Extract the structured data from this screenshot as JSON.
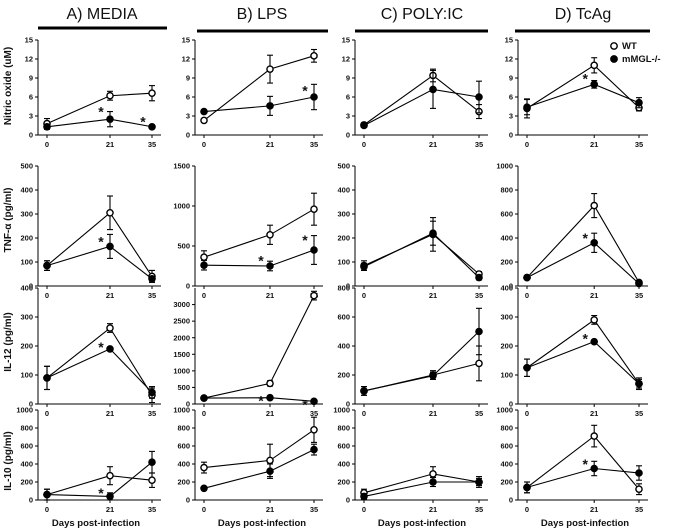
{
  "chart_data": {
    "type": "line",
    "columns": [
      "A) MEDIA",
      "B) LPS",
      "C) POLY:IC",
      "D) TcAg"
    ],
    "row_ylabels": [
      "Nitric oxide (uM)",
      "TNF-α (pg/ml)",
      "IL-12 (pg/ml)",
      "IL-10 (pg/ml)"
    ],
    "xlabel": "Days post-infection",
    "x": [
      0,
      21,
      35
    ],
    "legend": [
      {
        "name": "WT",
        "marker": "open circle"
      },
      {
        "name": "mMGL-/-",
        "marker": "filled circle"
      }
    ],
    "panels": [
      {
        "row": 0,
        "col": 0,
        "ylim": [
          0,
          15
        ],
        "yticks": [
          "0",
          "3",
          "6",
          "9",
          "12",
          "15"
        ],
        "series": [
          {
            "name": "WT",
            "values": [
              1.8,
              6.2,
              6.6
            ],
            "errors": [
              0.8,
              0.7,
              1.2
            ]
          },
          {
            "name": "mMGL-/-",
            "values": [
              1.3,
              2.5,
              1.3
            ],
            "errors": [
              0.4,
              1.2,
              0.3
            ]
          }
        ],
        "stars": [
          {
            "x": 21,
            "y": 3.9
          },
          {
            "x": 35,
            "y": 2.3
          }
        ]
      },
      {
        "row": 0,
        "col": 1,
        "ylim": [
          0,
          15
        ],
        "yticks": [
          "0",
          "3",
          "6",
          "9",
          "12",
          "15"
        ],
        "series": [
          {
            "name": "WT",
            "values": [
              2.3,
              10.4,
              12.5
            ],
            "errors": [
              0.3,
              2.2,
              1.0
            ]
          },
          {
            "name": "mMGL-/-",
            "values": [
              3.7,
              4.6,
              6.0
            ],
            "errors": [
              0.2,
              1.5,
              2.0
            ]
          }
        ],
        "stars": [
          {
            "x": 35,
            "y": 7.2
          }
        ]
      },
      {
        "row": 0,
        "col": 2,
        "ylim": [
          0,
          15
        ],
        "yticks": [
          "0",
          "3",
          "6",
          "9",
          "12",
          "15"
        ],
        "series": [
          {
            "name": "WT",
            "values": [
              1.6,
              9.4,
              3.7
            ],
            "errors": [
              0.3,
              1.0,
              1.1
            ]
          },
          {
            "name": "mMGL-/-",
            "values": [
              1.5,
              7.2,
              6.0
            ],
            "errors": [
              0.3,
              3.0,
              2.5
            ]
          }
        ],
        "stars": []
      },
      {
        "row": 0,
        "col": 3,
        "ylim": [
          0,
          15
        ],
        "yticks": [
          "0",
          "3",
          "6",
          "9",
          "12",
          "15"
        ],
        "series": [
          {
            "name": "WT",
            "values": [
              4.2,
              11.0,
              4.3
            ],
            "errors": [
              1.5,
              1.2,
              0.5
            ]
          },
          {
            "name": "mMGL-/-",
            "values": [
              4.4,
              8.0,
              5.1
            ],
            "errors": [
              1.2,
              0.6,
              0.8
            ]
          }
        ],
        "stars": [
          {
            "x": 21,
            "y": 9.1
          }
        ]
      },
      {
        "row": 1,
        "col": 0,
        "ylim": [
          0,
          500
        ],
        "yticks": [
          "0",
          "100",
          "200",
          "300",
          "400",
          "500"
        ],
        "series": [
          {
            "name": "WT",
            "values": [
              85,
              305,
              40
            ],
            "errors": [
              20,
              70,
              25
            ]
          },
          {
            "name": "mMGL-/-",
            "values": [
              85,
              165,
              30
            ],
            "errors": [
              20,
              50,
              10
            ]
          }
        ],
        "stars": [
          {
            "x": 21,
            "y": 190
          }
        ]
      },
      {
        "row": 1,
        "col": 1,
        "ylim": [
          0,
          1500
        ],
        "yticks": [
          "0",
          "500",
          "1000",
          "1500"
        ],
        "series": [
          {
            "name": "WT",
            "values": [
              360,
              640,
              960
            ],
            "errors": [
              80,
              120,
              200
            ]
          },
          {
            "name": "mMGL-/-",
            "values": [
              260,
              250,
              450
            ],
            "errors": [
              60,
              60,
              180
            ]
          }
        ],
        "stars": [
          {
            "x": 21,
            "y": 330
          },
          {
            "x": 35,
            "y": 590
          }
        ]
      },
      {
        "row": 1,
        "col": 2,
        "ylim": [
          0,
          500
        ],
        "yticks": [
          "0",
          "100",
          "200",
          "300",
          "400",
          "500"
        ],
        "series": [
          {
            "name": "WT",
            "values": [
              85,
              215,
              50
            ],
            "errors": [
              20,
              70,
              10
            ]
          },
          {
            "name": "mMGL-/-",
            "values": [
              80,
              220,
              35
            ],
            "errors": [
              15,
              50,
              10
            ]
          }
        ],
        "stars": []
      },
      {
        "row": 1,
        "col": 3,
        "ylim": [
          0,
          1000
        ],
        "yticks": [
          "0",
          "200",
          "400",
          "600",
          "800",
          "1000"
        ],
        "series": [
          {
            "name": "WT",
            "values": [
              70,
              670,
              30
            ],
            "errors": [
              10,
              100,
              10
            ]
          },
          {
            "name": "mMGL-/-",
            "values": [
              70,
              360,
              20
            ],
            "errors": [
              10,
              80,
              5
            ]
          }
        ],
        "stars": [
          {
            "x": 21,
            "y": 410
          }
        ]
      },
      {
        "row": 2,
        "col": 0,
        "ylim": [
          0,
          400
        ],
        "yticks": [
          "0",
          "100",
          "200",
          "300",
          "400"
        ],
        "series": [
          {
            "name": "WT",
            "values": [
              90,
              262,
              30
            ],
            "errors": [
              40,
              15,
              25
            ]
          },
          {
            "name": "mMGL-/-",
            "values": [
              90,
              190,
              40
            ],
            "errors": [
              40,
              5,
              20
            ]
          }
        ],
        "stars": [
          {
            "x": 21,
            "y": 200
          }
        ]
      },
      {
        "row": 2,
        "col": 1,
        "ylim": [
          0,
          3500
        ],
        "yticks": [
          "0",
          "500",
          "1000",
          "1500",
          "2000",
          "2500",
          "3000"
        ],
        "series": [
          {
            "name": "WT",
            "values": [
              180,
              620,
              3270
            ],
            "errors": [
              30,
              80,
              130
            ]
          },
          {
            "name": "mMGL-/-",
            "values": [
              180,
              190,
              80
            ],
            "errors": [
              30,
              30,
              20
            ]
          }
        ],
        "stars": [
          {
            "x": 21,
            "y": 130
          },
          {
            "x": 35,
            "y": 20
          }
        ]
      },
      {
        "row": 2,
        "col": 2,
        "ylim": [
          0,
          800
        ],
        "yticks": [
          "0",
          "200",
          "400",
          "600",
          "800"
        ],
        "series": [
          {
            "name": "WT",
            "values": [
              90,
              200,
              280
            ],
            "errors": [
              30,
              30,
              120
            ]
          },
          {
            "name": "mMGL-/-",
            "values": [
              90,
              195,
              500
            ],
            "errors": [
              30,
              25,
              160
            ]
          }
        ],
        "stars": []
      },
      {
        "row": 2,
        "col": 3,
        "ylim": [
          0,
          400
        ],
        "yticks": [
          "0",
          "100",
          "200",
          "300",
          "400"
        ],
        "series": [
          {
            "name": "WT",
            "values": [
              125,
              290,
              70
            ],
            "errors": [
              30,
              15,
              20
            ]
          },
          {
            "name": "mMGL-/-",
            "values": [
              125,
              215,
              70
            ],
            "errors": [
              30,
              5,
              15
            ]
          }
        ],
        "stars": [
          {
            "x": 21,
            "y": 230
          }
        ]
      },
      {
        "row": 3,
        "col": 0,
        "ylim": [
          0,
          1000
        ],
        "yticks": [
          "0",
          "200",
          "400",
          "600",
          "800",
          "1000"
        ],
        "series": [
          {
            "name": "WT",
            "values": [
              60,
              270,
              220
            ],
            "errors": [
              60,
              100,
              80
            ]
          },
          {
            "name": "mMGL-/-",
            "values": [
              60,
              40,
              420
            ],
            "errors": [
              60,
              40,
              120
            ]
          }
        ],
        "stars": [
          {
            "x": 21,
            "y": 90
          }
        ]
      },
      {
        "row": 3,
        "col": 1,
        "ylim": [
          0,
          1000
        ],
        "yticks": [
          "0",
          "200",
          "400",
          "600",
          "800",
          "1000"
        ],
        "series": [
          {
            "name": "WT",
            "values": [
              360,
              440,
              780
            ],
            "errors": [
              60,
              180,
              140
            ]
          },
          {
            "name": "mMGL-/-",
            "values": [
              130,
              320,
              560
            ],
            "errors": [
              10,
              80,
              60
            ]
          }
        ],
        "stars": []
      },
      {
        "row": 3,
        "col": 2,
        "ylim": [
          0,
          1000
        ],
        "yticks": [
          "0",
          "200",
          "400",
          "600",
          "800",
          "1000"
        ],
        "series": [
          {
            "name": "WT",
            "values": [
              80,
              290,
              200
            ],
            "errors": [
              40,
              80,
              40
            ]
          },
          {
            "name": "mMGL-/-",
            "values": [
              40,
              200,
              200
            ],
            "errors": [
              30,
              50,
              60
            ]
          }
        ],
        "stars": []
      },
      {
        "row": 3,
        "col": 3,
        "ylim": [
          0,
          1000
        ],
        "yticks": [
          "0",
          "200",
          "400",
          "600",
          "800",
          "1000"
        ],
        "series": [
          {
            "name": "WT",
            "values": [
              140,
              710,
              120
            ],
            "errors": [
              60,
              120,
              60
            ]
          },
          {
            "name": "mMGL-/-",
            "values": [
              140,
              350,
              300
            ],
            "errors": [
              60,
              80,
              80
            ]
          }
        ],
        "stars": [
          {
            "x": 21,
            "y": 410
          }
        ]
      }
    ]
  }
}
